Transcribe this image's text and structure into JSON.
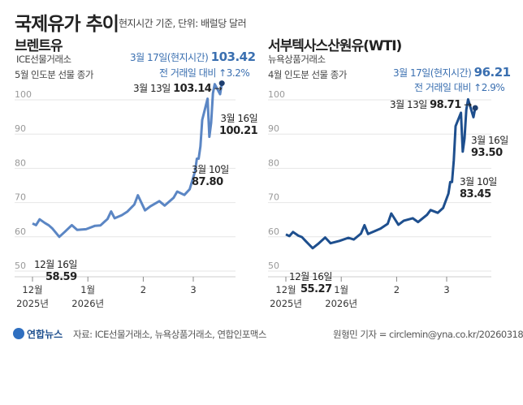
{
  "header": {
    "title": "국제유가 추이",
    "subtitle": "현지시간 기준, 단위: 배럴당 달러"
  },
  "colors": {
    "brent": "#5b86c4",
    "wti": "#1e4f8e",
    "accent": "#3a6fb0"
  },
  "chart_data": [
    {
      "type": "line",
      "title": "브렌트유",
      "desc1": "ICE선물거래소",
      "desc2": "5월 인도분 선물 종가",
      "ylim": [
        50,
        105
      ],
      "yticks": [
        "50",
        "60",
        "70",
        "80",
        "90",
        "100"
      ],
      "grid": true,
      "xticks": [
        {
          "label": "12월",
          "sub": "2025년",
          "date": "2025-12-01"
        },
        {
          "label": "1월",
          "sub": "2026년",
          "date": "2026-01-01"
        },
        {
          "label": "2",
          "date": "2026-02-01"
        },
        {
          "label": "3",
          "date": "2026-03-01"
        }
      ],
      "x": [
        "2025-12-01",
        "2025-12-03",
        "2025-12-05",
        "2025-12-08",
        "2025-12-10",
        "2025-12-12",
        "2025-12-16",
        "2025-12-19",
        "2025-12-23",
        "2025-12-26",
        "2025-12-31",
        "2026-01-05",
        "2026-01-08",
        "2026-01-12",
        "2026-01-14",
        "2026-01-16",
        "2026-01-20",
        "2026-01-23",
        "2026-01-27",
        "2026-01-29",
        "2026-02-02",
        "2026-02-05",
        "2026-02-10",
        "2026-02-13",
        "2026-02-18",
        "2026-02-20",
        "2026-02-24",
        "2026-02-27",
        "2026-03-02",
        "2026-03-03",
        "2026-03-04",
        "2026-03-05",
        "2026-03-06",
        "2026-03-09",
        "2026-03-10",
        "2026-03-11",
        "2026-03-12",
        "2026-03-13",
        "2026-03-16",
        "2026-03-17"
      ],
      "values": [
        62.5,
        62.0,
        63.7,
        62.6,
        62.0,
        61.1,
        58.59,
        60.0,
        62.0,
        60.6,
        60.8,
        61.8,
        61.9,
        63.8,
        66.0,
        64.0,
        64.9,
        65.9,
        68.0,
        70.7,
        66.3,
        67.5,
        69.0,
        67.7,
        70.0,
        71.8,
        70.8,
        72.5,
        77.7,
        81.4,
        81.4,
        85.0,
        92.7,
        98.9,
        87.8,
        91.9,
        100.5,
        103.14,
        100.21,
        103.42
      ],
      "annotations": {
        "latest_label": "3월 17일(현지시간)",
        "latest_value": "103.42",
        "change": "전 거래일 대비 ↑3.2%",
        "mar13_label": "3월 13일",
        "mar13_value": "103.14",
        "mar16_label": "3월 16일",
        "mar16_value": "100.21",
        "mar10_label": "3월 10일",
        "mar10_value": "87.80",
        "dec16_label": "12월 16일",
        "dec16_value": "58.59"
      }
    },
    {
      "type": "line",
      "title": "서부텍사스산원유(WTI)",
      "desc1": "뉴욕상품거래소",
      "desc2": "4월 인도분 선물 종가",
      "ylim": [
        50,
        105
      ],
      "yticks": [
        "50",
        "60",
        "70",
        "80",
        "90",
        "100"
      ],
      "grid": true,
      "xticks": [
        {
          "label": "12월",
          "sub": "2025년",
          "date": "2025-12-01"
        },
        {
          "label": "1월",
          "sub": "2026년",
          "date": "2026-01-01"
        },
        {
          "label": "2",
          "date": "2026-02-01"
        },
        {
          "label": "3",
          "date": "2026-03-01"
        }
      ],
      "x": [
        "2025-12-01",
        "2025-12-03",
        "2025-12-05",
        "2025-12-08",
        "2025-12-10",
        "2025-12-12",
        "2025-12-16",
        "2025-12-19",
        "2025-12-23",
        "2025-12-26",
        "2025-12-31",
        "2026-01-05",
        "2026-01-08",
        "2026-01-12",
        "2026-01-14",
        "2026-01-16",
        "2026-01-20",
        "2026-01-23",
        "2026-01-27",
        "2026-01-29",
        "2026-02-02",
        "2026-02-05",
        "2026-02-10",
        "2026-02-13",
        "2026-02-18",
        "2026-02-20",
        "2026-02-24",
        "2026-02-27",
        "2026-03-02",
        "2026-03-03",
        "2026-03-04",
        "2026-03-05",
        "2026-03-06",
        "2026-03-09",
        "2026-03-10",
        "2026-03-11",
        "2026-03-12",
        "2026-03-13",
        "2026-03-16",
        "2026-03-17"
      ],
      "values": [
        59.3,
        58.8,
        60.0,
        58.9,
        58.5,
        57.4,
        55.27,
        56.5,
        58.4,
        56.7,
        57.4,
        58.3,
        57.8,
        59.5,
        62.0,
        59.4,
        60.3,
        61.0,
        62.4,
        65.4,
        62.1,
        63.3,
        64.0,
        62.9,
        65.0,
        66.4,
        65.6,
        67.0,
        71.2,
        74.6,
        74.6,
        81.0,
        90.9,
        94.8,
        83.45,
        87.3,
        95.7,
        98.71,
        93.5,
        96.21
      ],
      "annotations": {
        "latest_label": "3월 17일(현지시간)",
        "latest_value": "96.21",
        "change": "전 거래일 대비 ↑2.9%",
        "mar13_label": "3월 13일",
        "mar13_value": "98.71",
        "mar16_label": "3월 16일",
        "mar16_value": "93.50",
        "mar10_label": "3월 10일",
        "mar10_value": "83.45",
        "dec16_label": "12월 16일",
        "dec16_value": "55.27"
      }
    }
  ],
  "footer": {
    "logo": "연합뉴스",
    "source": "자료: ICE선물거래소, 뉴욕상품거래소, 연합인포맥스",
    "credit": "원형민 기자 = circlemin@yna.co.kr/20260318"
  }
}
